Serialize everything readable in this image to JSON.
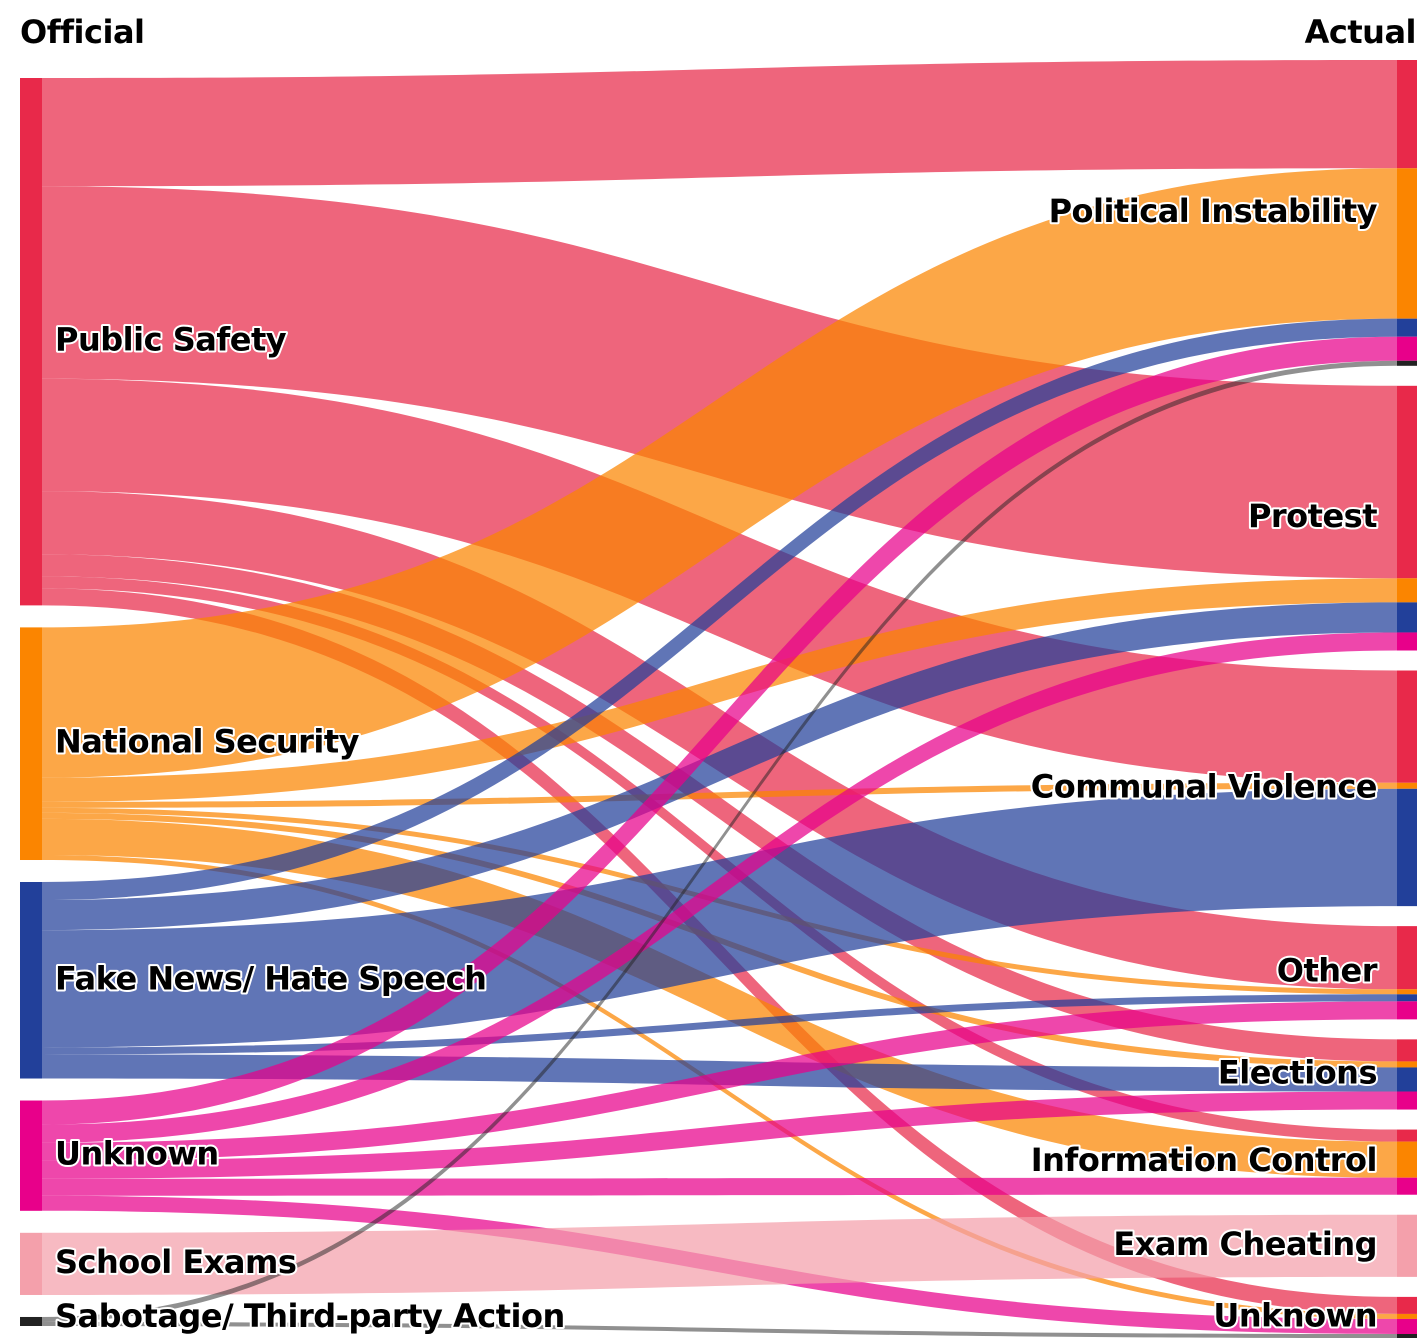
{
  "chart_data": {
    "type": "sankey",
    "left_title": "Official",
    "right_title": "Actual",
    "sources": [
      {
        "name": "Public Safety",
        "color": "#e8294a"
      },
      {
        "name": "National Security",
        "color": "#fb8500"
      },
      {
        "name": "Fake News/ Hate Speech",
        "color": "#22409a"
      },
      {
        "name": "Unknown",
        "color": "#e8008a"
      },
      {
        "name": "School Exams",
        "color": "#f4a0ab"
      },
      {
        "name": "Sabotage/ Third-party Action",
        "color": "#222222"
      }
    ],
    "targets": [
      {
        "name": "Political Instability"
      },
      {
        "name": "Protest"
      },
      {
        "name": "Communal Violence"
      },
      {
        "name": "Other"
      },
      {
        "name": "Elections"
      },
      {
        "name": "Information Control"
      },
      {
        "name": "Exam Cheating"
      },
      {
        "name": "Unknown"
      }
    ],
    "links": [
      {
        "source": 0,
        "target": 0,
        "value": 108
      },
      {
        "source": 0,
        "target": 1,
        "value": 192
      },
      {
        "source": 0,
        "target": 2,
        "value": 112
      },
      {
        "source": 0,
        "target": 3,
        "value": 63
      },
      {
        "source": 0,
        "target": 4,
        "value": 22
      },
      {
        "source": 0,
        "target": 5,
        "value": 12
      },
      {
        "source": 0,
        "target": 7,
        "value": 17
      },
      {
        "source": 1,
        "target": 0,
        "value": 150
      },
      {
        "source": 1,
        "target": 1,
        "value": 24
      },
      {
        "source": 1,
        "target": 2,
        "value": 6
      },
      {
        "source": 1,
        "target": 3,
        "value": 5
      },
      {
        "source": 1,
        "target": 4,
        "value": 6
      },
      {
        "source": 1,
        "target": 5,
        "value": 36
      },
      {
        "source": 1,
        "target": 7,
        "value": 5
      },
      {
        "source": 2,
        "target": 0,
        "value": 18
      },
      {
        "source": 2,
        "target": 1,
        "value": 30
      },
      {
        "source": 2,
        "target": 2,
        "value": 117
      },
      {
        "source": 2,
        "target": 3,
        "value": 7
      },
      {
        "source": 2,
        "target": 4,
        "value": 24
      },
      {
        "source": 3,
        "target": 0,
        "value": 24
      },
      {
        "source": 3,
        "target": 1,
        "value": 18
      },
      {
        "source": 3,
        "target": 3,
        "value": 18
      },
      {
        "source": 3,
        "target": 4,
        "value": 18
      },
      {
        "source": 3,
        "target": 5,
        "value": 17
      },
      {
        "source": 3,
        "target": 7,
        "value": 15
      },
      {
        "source": 4,
        "target": 6,
        "value": 62
      },
      {
        "source": 5,
        "target": 0,
        "value": 5
      },
      {
        "source": 5,
        "target": 7,
        "value": 4
      }
    ]
  }
}
